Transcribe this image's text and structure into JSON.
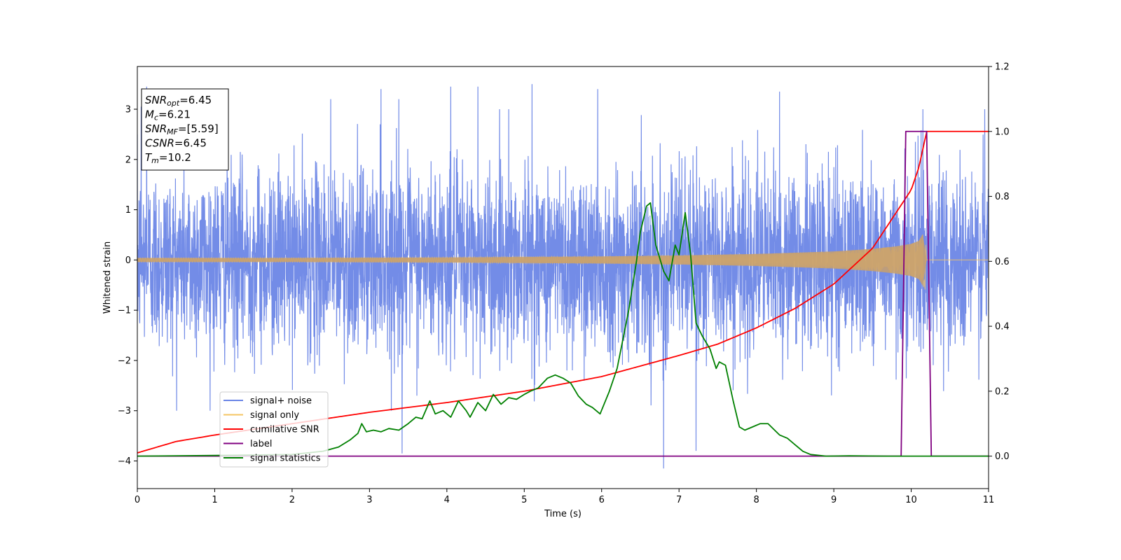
{
  "chart_data": {
    "type": "line",
    "xlabel": "Time (s)",
    "ylabel": "Whitened strain",
    "xlim": [
      0,
      11
    ],
    "ylim_left": [
      -4.55,
      3.85
    ],
    "ylim_right": [
      -0.1,
      1.2
    ],
    "x_ticks": [
      "0",
      "1",
      "2",
      "3",
      "4",
      "5",
      "6",
      "7",
      "8",
      "9",
      "10",
      "11"
    ],
    "y_ticks_left": [
      "3",
      "2",
      "1",
      "0",
      "−1",
      "−2",
      "−3",
      "−4"
    ],
    "y_ticks_right": [
      "1.2",
      "1.0",
      "0.8",
      "0.6",
      "0.4",
      "0.2",
      "0.0"
    ],
    "info_box": {
      "snr_opt": {
        "sym": "SNR",
        "sub": "opt",
        "value": "=6.45"
      },
      "mc": {
        "sym": "M",
        "sub": "c",
        "value": "=6.21"
      },
      "snr_mf": {
        "sym": "SNR",
        "sub": "MF",
        "value": "=[5.59]"
      },
      "csnr": {
        "sym": "CSNR",
        "sub": "",
        "value": "=6.45"
      },
      "tm": {
        "sym": "T",
        "sub": "m",
        "value": "=10.2"
      }
    },
    "legend": {
      "placement": "lower-left",
      "entries": [
        {
          "label": "signal+ noise",
          "color": "#6b86e6"
        },
        {
          "label": "signal only",
          "color": "#f5c563"
        },
        {
          "label": "cumilative SNR",
          "color": "#ff0000"
        },
        {
          "label": "label",
          "color": "#800080"
        },
        {
          "label": "signal statistics",
          "color": "#008000"
        }
      ]
    },
    "series": [
      {
        "name": "signal+ noise",
        "axis": "left",
        "color": "#6b86e6",
        "description_note": "whitened noise, approx N(0,1), spanning t=0..11 s",
        "std": 1.0,
        "peaks": [
          [
            0.05,
            3.05
          ],
          [
            0.12,
            3.45
          ],
          [
            2.5,
            3.2
          ],
          [
            3.15,
            3.4
          ],
          [
            3.38,
            3.2
          ],
          [
            3.42,
            -3.85
          ],
          [
            4.05,
            3.45
          ],
          [
            4.4,
            3.45
          ],
          [
            4.8,
            3.0
          ],
          [
            5.1,
            3.5
          ],
          [
            5.55,
            -2.2
          ],
          [
            5.95,
            3.4
          ],
          [
            6.8,
            -4.15
          ],
          [
            7.22,
            -3.8
          ],
          [
            8.3,
            3.35
          ],
          [
            10.15,
            3.0
          ],
          [
            10.95,
            3.0
          ]
        ]
      },
      {
        "name": "signal only",
        "axis": "left",
        "color": "#f5c563",
        "envelope": [
          [
            0,
            0.04
          ],
          [
            2.0,
            0.04
          ],
          [
            4.0,
            0.05
          ],
          [
            6.0,
            0.07
          ],
          [
            7.0,
            0.09
          ],
          [
            8.0,
            0.12
          ],
          [
            9.0,
            0.17
          ],
          [
            9.5,
            0.22
          ],
          [
            9.8,
            0.27
          ],
          [
            10.0,
            0.32
          ],
          [
            10.1,
            0.38
          ],
          [
            10.18,
            0.6
          ],
          [
            10.2,
            0.0
          ],
          [
            11,
            0.0
          ]
        ]
      },
      {
        "name": "cumilative SNR",
        "axis": "right",
        "color": "#ff0000",
        "points": [
          [
            0,
            0.01
          ],
          [
            0.5,
            0.045
          ],
          [
            1.0,
            0.065
          ],
          [
            2.0,
            0.1
          ],
          [
            3.0,
            0.135
          ],
          [
            4.0,
            0.165
          ],
          [
            5.0,
            0.2
          ],
          [
            6.0,
            0.245
          ],
          [
            7.0,
            0.31
          ],
          [
            7.5,
            0.345
          ],
          [
            8.0,
            0.395
          ],
          [
            8.5,
            0.455
          ],
          [
            9.0,
            0.53
          ],
          [
            9.5,
            0.64
          ],
          [
            10.0,
            0.82
          ],
          [
            10.1,
            0.89
          ],
          [
            10.2,
            1.0
          ],
          [
            11,
            1.0
          ]
        ]
      },
      {
        "name": "label",
        "axis": "right",
        "color": "#800080",
        "points": [
          [
            0,
            0.0
          ],
          [
            9.87,
            0.0
          ],
          [
            9.93,
            1.0
          ],
          [
            10.2,
            1.0
          ],
          [
            10.26,
            0.0
          ],
          [
            11,
            0.0
          ]
        ]
      },
      {
        "name": "signal statistics",
        "axis": "right",
        "color": "#008000",
        "points": [
          [
            0,
            0.0
          ],
          [
            1.0,
            0.002
          ],
          [
            2.0,
            0.005
          ],
          [
            2.4,
            0.015
          ],
          [
            2.6,
            0.028
          ],
          [
            2.75,
            0.05
          ],
          [
            2.85,
            0.07
          ],
          [
            2.9,
            0.1
          ],
          [
            2.96,
            0.075
          ],
          [
            3.05,
            0.08
          ],
          [
            3.15,
            0.075
          ],
          [
            3.25,
            0.085
          ],
          [
            3.38,
            0.08
          ],
          [
            3.5,
            0.1
          ],
          [
            3.6,
            0.12
          ],
          [
            3.68,
            0.115
          ],
          [
            3.78,
            0.17
          ],
          [
            3.85,
            0.13
          ],
          [
            3.95,
            0.14
          ],
          [
            4.05,
            0.12
          ],
          [
            4.15,
            0.17
          ],
          [
            4.25,
            0.14
          ],
          [
            4.3,
            0.12
          ],
          [
            4.4,
            0.165
          ],
          [
            4.5,
            0.14
          ],
          [
            4.6,
            0.19
          ],
          [
            4.7,
            0.16
          ],
          [
            4.8,
            0.18
          ],
          [
            4.9,
            0.175
          ],
          [
            5.0,
            0.19
          ],
          [
            5.08,
            0.2
          ],
          [
            5.18,
            0.21
          ],
          [
            5.3,
            0.24
          ],
          [
            5.4,
            0.25
          ],
          [
            5.5,
            0.24
          ],
          [
            5.6,
            0.225
          ],
          [
            5.7,
            0.185
          ],
          [
            5.8,
            0.16
          ],
          [
            5.88,
            0.15
          ],
          [
            5.98,
            0.13
          ],
          [
            6.1,
            0.2
          ],
          [
            6.2,
            0.27
          ],
          [
            6.35,
            0.45
          ],
          [
            6.45,
            0.6
          ],
          [
            6.5,
            0.69
          ],
          [
            6.58,
            0.77
          ],
          [
            6.63,
            0.78
          ],
          [
            6.7,
            0.65
          ],
          [
            6.8,
            0.57
          ],
          [
            6.87,
            0.54
          ],
          [
            6.95,
            0.65
          ],
          [
            7.0,
            0.62
          ],
          [
            7.08,
            0.75
          ],
          [
            7.15,
            0.62
          ],
          [
            7.22,
            0.41
          ],
          [
            7.3,
            0.37
          ],
          [
            7.4,
            0.33
          ],
          [
            7.48,
            0.27
          ],
          [
            7.52,
            0.29
          ],
          [
            7.6,
            0.28
          ],
          [
            7.7,
            0.17
          ],
          [
            7.78,
            0.09
          ],
          [
            7.85,
            0.08
          ],
          [
            7.95,
            0.09
          ],
          [
            8.05,
            0.1
          ],
          [
            8.15,
            0.1
          ],
          [
            8.3,
            0.065
          ],
          [
            8.4,
            0.055
          ],
          [
            8.5,
            0.035
          ],
          [
            8.6,
            0.015
          ],
          [
            8.7,
            0.005
          ],
          [
            8.9,
            0.0
          ],
          [
            9.2,
            0.001
          ],
          [
            9.7,
            0.0
          ],
          [
            11,
            0.0
          ]
        ]
      }
    ]
  }
}
